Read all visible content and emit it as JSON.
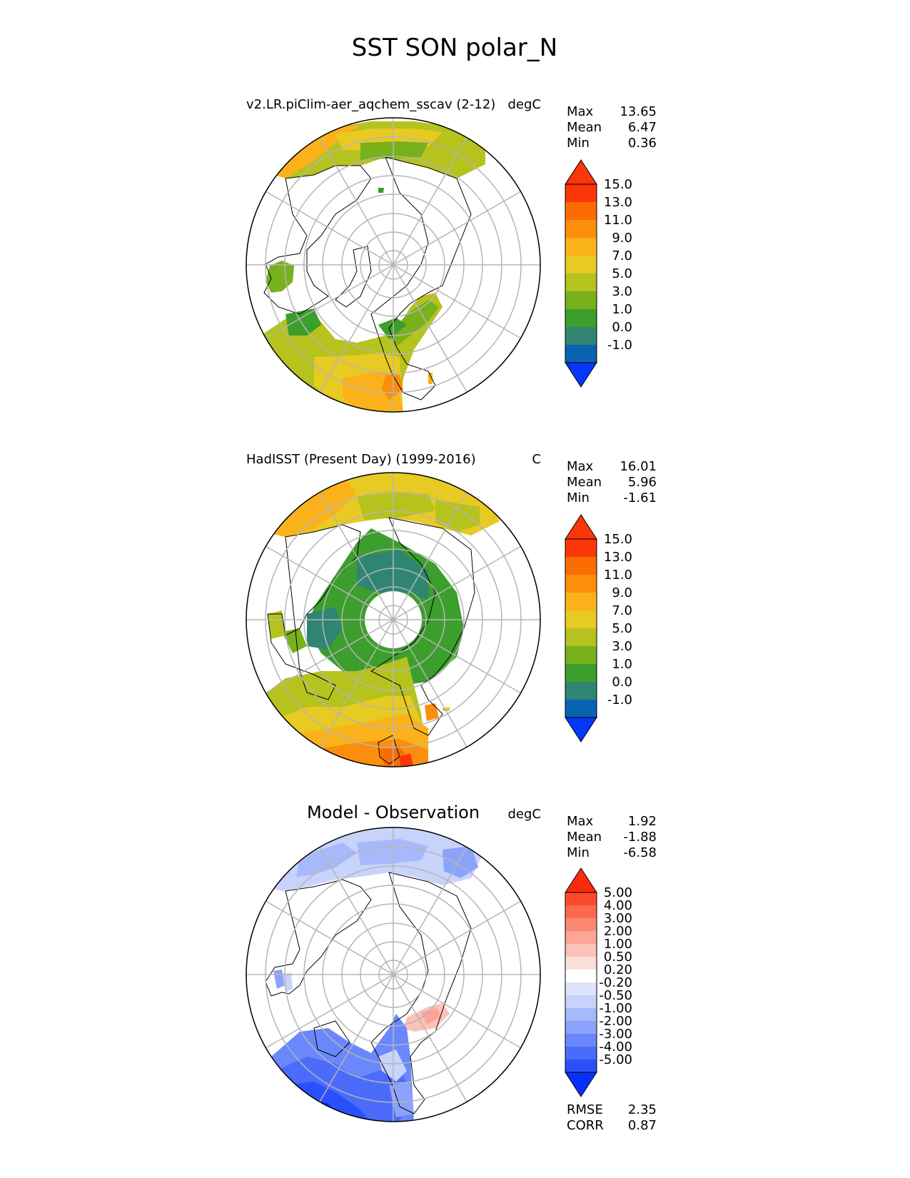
{
  "title": "SST SON polar_N",
  "colors": {
    "ocean_levels": [
      "#0536fe",
      "#0a63b0",
      "#2f8572",
      "#3c9e2c",
      "#78b11c",
      "#b6c21d",
      "#e7ca22",
      "#fbb21a",
      "#fb8e0c",
      "#fb6c02",
      "#fb3608"
    ],
    "diff_levels": [
      "#0a2ffb",
      "#2a50fb",
      "#4b6cfb",
      "#6a88fb",
      "#8ba3fb",
      "#a8b9fb",
      "#c8d3fb",
      "#dde4fb",
      "#ffffff",
      "#fbdfda",
      "#fbc2b8",
      "#fba597",
      "#fb8872",
      "#fb6a4d",
      "#fb4b2b",
      "#fb2a0c"
    ],
    "grid": "#b5b5b5",
    "coast": "#000000"
  },
  "panels": [
    {
      "id": "model",
      "title": "v2.LR.piClim-aer_aqchem_sscav (2-12)",
      "units": "degC",
      "stats": [
        {
          "label": "Max",
          "value": "13.65"
        },
        {
          "label": "Mean",
          "value": "6.47"
        },
        {
          "label": "Min",
          "value": "0.36"
        }
      ],
      "colorbar_labels": [
        "15.0",
        "13.0",
        "11.0",
        "9.0",
        "7.0",
        "5.0",
        "3.0",
        "1.0",
        "0.0",
        "-1.0"
      ]
    },
    {
      "id": "obs",
      "title": "HadISST (Present Day) (1999-2016)",
      "units": "C",
      "stats": [
        {
          "label": "Max",
          "value": "16.01"
        },
        {
          "label": "Mean",
          "value": "5.96"
        },
        {
          "label": "Min",
          "value": "-1.61"
        }
      ],
      "colorbar_labels": [
        "15.0",
        "13.0",
        "11.0",
        "9.0",
        "7.0",
        "5.0",
        "3.0",
        "1.0",
        "0.0",
        "-1.0"
      ]
    },
    {
      "id": "diff",
      "title": "Model - Observation",
      "units": "degC",
      "stats": [
        {
          "label": "Max",
          "value": "1.92"
        },
        {
          "label": "Mean",
          "value": "-1.88"
        },
        {
          "label": "Min",
          "value": "-6.58"
        }
      ],
      "colorbar_labels": [
        "5.00",
        "4.00",
        "3.00",
        "2.00",
        "1.00",
        "0.50",
        "0.20",
        "-0.20",
        "-0.50",
        "-1.00",
        "-2.00",
        "-3.00",
        "-4.00",
        "-5.00"
      ],
      "extra_stats": [
        {
          "label": "RMSE",
          "value": "2.35"
        },
        {
          "label": "CORR",
          "value": "0.87"
        }
      ]
    }
  ]
}
